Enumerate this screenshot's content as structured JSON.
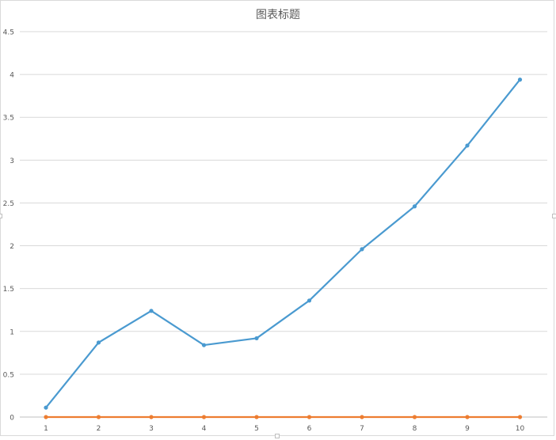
{
  "chart_data": {
    "type": "line",
    "title": "图表标题",
    "x": [
      1,
      2,
      3,
      4,
      5,
      6,
      7,
      8,
      9,
      10
    ],
    "categories": [
      "1",
      "2",
      "3",
      "4",
      "5",
      "6",
      "7",
      "8",
      "9",
      "10"
    ],
    "ylim": [
      0,
      4.5
    ],
    "yticks": [
      "0",
      "0.5",
      "1",
      "1.5",
      "2",
      "2.5",
      "3",
      "3.5",
      "4",
      "4.5"
    ],
    "grid": true,
    "series": [
      {
        "color": "#4a9ad0",
        "values": [
          0.11,
          0.87,
          1.24,
          0.84,
          0.92,
          1.36,
          1.96,
          2.46,
          3.17,
          3.94
        ]
      },
      {
        "color": "#ed7d31",
        "values": [
          0,
          0,
          0,
          0,
          0,
          0,
          0,
          0,
          0,
          0
        ]
      }
    ]
  }
}
